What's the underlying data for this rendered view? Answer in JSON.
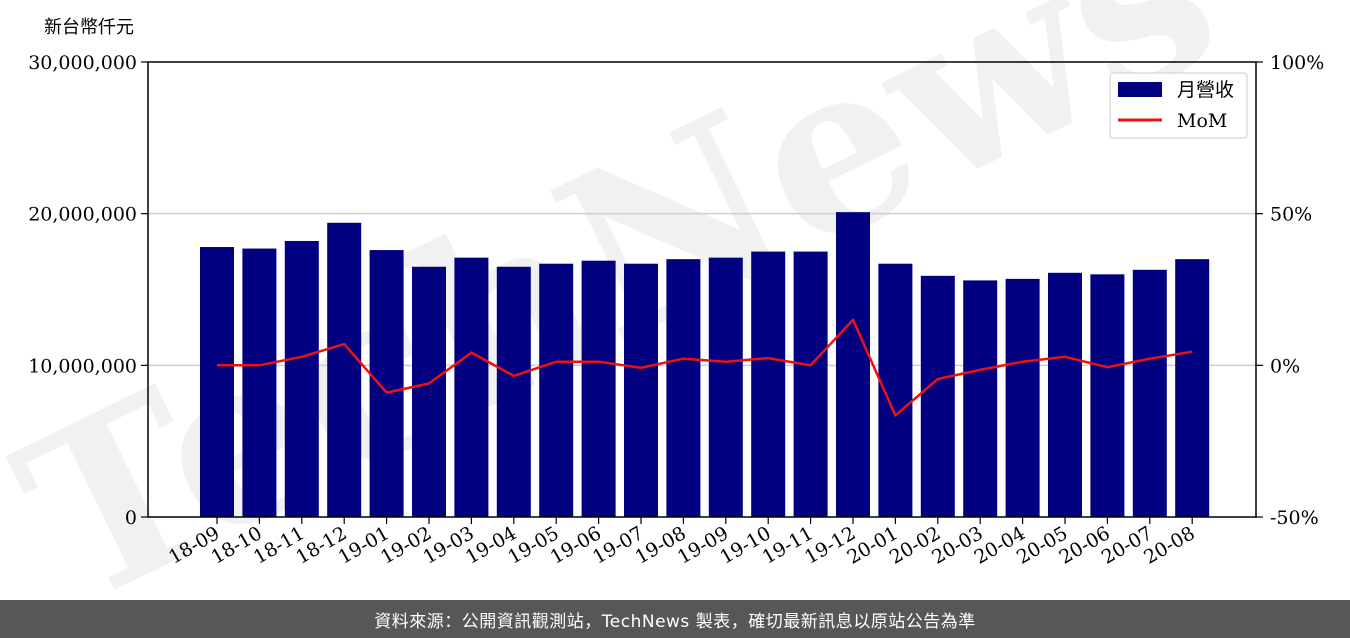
{
  "chart_data": {
    "type": "bar",
    "categories": [
      "18-09",
      "18-10",
      "18-11",
      "18-12",
      "19-01",
      "19-02",
      "19-03",
      "19-04",
      "19-05",
      "19-06",
      "19-07",
      "19-08",
      "19-09",
      "19-10",
      "19-11",
      "19-12",
      "20-01",
      "20-02",
      "20-03",
      "20-04",
      "20-05",
      "20-06",
      "20-07",
      "20-08"
    ],
    "series": [
      {
        "name": "月營收",
        "type": "bar",
        "axis": "left",
        "color": "#000080",
        "values": [
          17800000,
          17700000,
          18200000,
          19400000,
          17600000,
          16500000,
          17100000,
          16500000,
          16700000,
          16900000,
          16700000,
          17000000,
          17100000,
          17500000,
          17500000,
          20100000,
          16700000,
          15900000,
          15600000,
          15700000,
          16100000,
          16000000,
          16300000,
          17000000
        ]
      },
      {
        "name": "MoM",
        "type": "line",
        "axis": "right",
        "color": "#ee1111",
        "values": [
          0.0,
          0.0,
          2.8,
          7.0,
          -9.0,
          -6.0,
          4.2,
          -3.5,
          1.2,
          1.2,
          -0.8,
          2.2,
          1.2,
          2.4,
          0.0,
          15.0,
          -16.5,
          -4.5,
          -1.5,
          1.2,
          2.8,
          -0.6,
          2.2,
          4.5
        ]
      }
    ],
    "ylabel": "新台幣仟元",
    "ylim": [
      0,
      30000000
    ],
    "y_ticks": [
      0,
      10000000,
      20000000,
      30000000
    ],
    "y_tick_labels": [
      "0",
      "10,000,000",
      "20,000,000",
      "30,000,000"
    ],
    "y2lim": [
      -50,
      100
    ],
    "y2_ticks": [
      -50,
      0,
      50,
      100
    ],
    "y2_tick_labels": [
      "-50%",
      "0%",
      "50%",
      "100%"
    ],
    "grid": "horizontal",
    "legend": "top-right"
  },
  "watermark": "TechNews",
  "footer": {
    "text": "資料來源：公開資訊觀測站，TechNews 製表，確切最新訊息以原站公告為準"
  }
}
